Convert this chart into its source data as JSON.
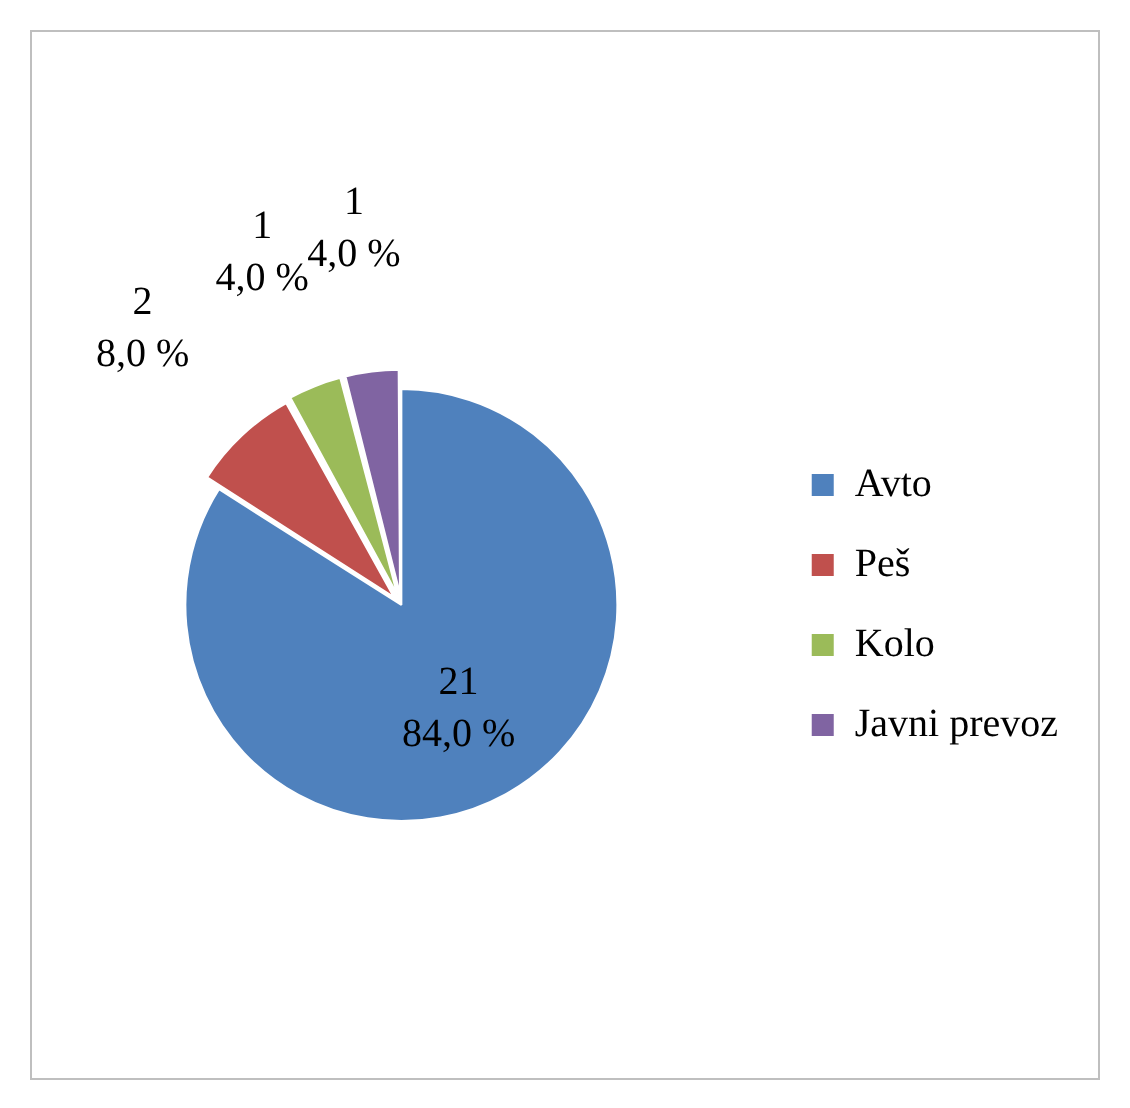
{
  "chart_data": {
    "type": "pie",
    "categories": [
      "Avto",
      "Peš",
      "Kolo",
      "Javni prevoz"
    ],
    "values": [
      21,
      2,
      1,
      1
    ],
    "colors": [
      "#4f81bd",
      "#c0504d",
      "#9bbb59",
      "#8064a2"
    ],
    "value_labels": [
      "21\n84,0 %",
      "2\n8,0 %",
      "1\n4,0 %",
      "1\n4,0 %"
    ],
    "legend": "right"
  }
}
